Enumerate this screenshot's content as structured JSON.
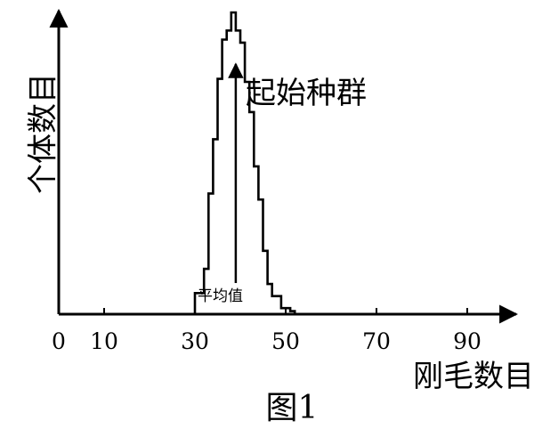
{
  "chart_data": {
    "type": "line",
    "title": "",
    "xlabel": "刚毛数目",
    "ylabel": "个体数目",
    "x_ticks": [
      "0",
      "10",
      "30",
      "50",
      "70",
      "90"
    ],
    "x_tick_values": [
      0,
      10,
      30,
      50,
      70,
      90
    ],
    "xlim": [
      0,
      104
    ],
    "ylim": [
      0,
      100
    ],
    "grid": false,
    "legend": "none",
    "series": [
      {
        "values_x": [
          29,
          30,
          30,
          32,
          32,
          33,
          33,
          34,
          34,
          35,
          35,
          36,
          36,
          37,
          37,
          38,
          38,
          39,
          39,
          40,
          40,
          41,
          41,
          42,
          42,
          43,
          43,
          44,
          44,
          45,
          45,
          46,
          46,
          47,
          47,
          49,
          49,
          51,
          51,
          52,
          52,
          53
        ],
        "values_y": [
          0,
          0,
          7,
          7,
          15,
          15,
          40,
          40,
          58,
          58,
          78,
          78,
          91,
          91,
          94,
          94,
          100,
          100,
          94,
          94,
          90,
          90,
          77,
          77,
          67,
          67,
          49,
          49,
          38,
          38,
          21,
          21,
          10,
          10,
          6,
          6,
          2,
          2,
          1,
          1,
          0,
          0
        ]
      }
    ],
    "annotations": [
      {
        "text": "起始种群",
        "points_to": "peak"
      },
      {
        "text": "平均值",
        "mean_x": 39
      }
    ],
    "caption": "图1"
  }
}
